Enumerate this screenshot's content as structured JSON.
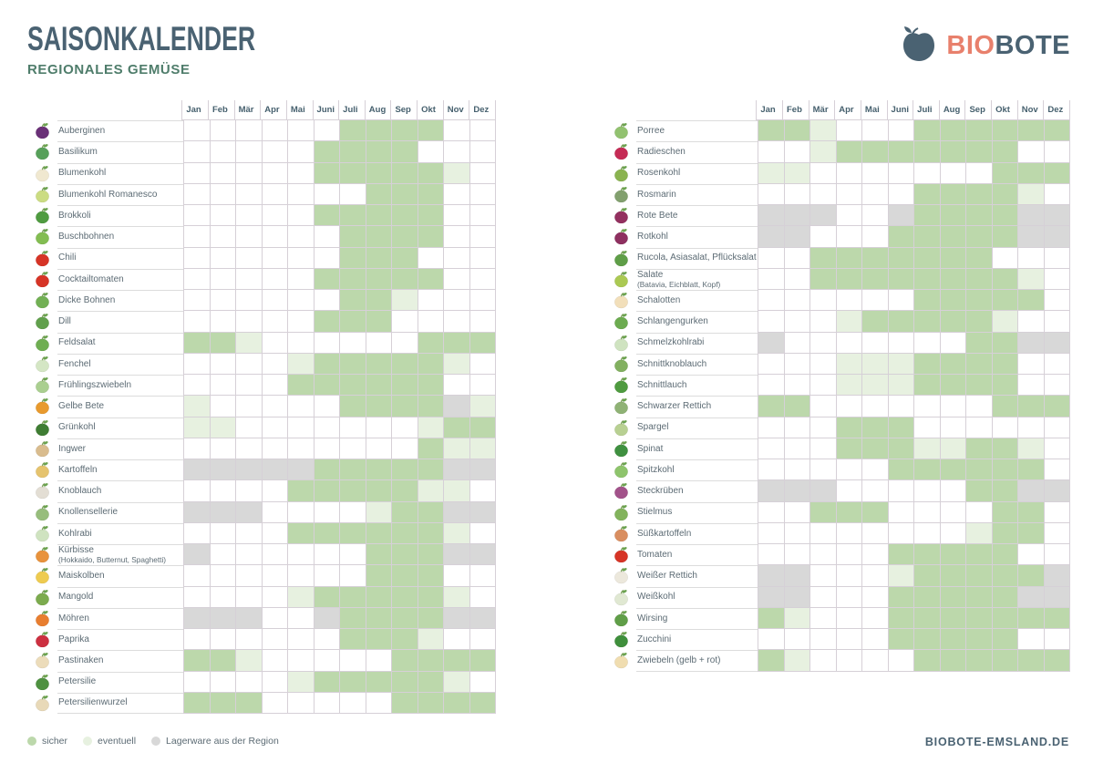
{
  "header": {
    "title": "SAISONKALENDER",
    "subtitle": "REGIONALES GEMÜSE"
  },
  "logo": {
    "bio": "BIO",
    "bote": "BOTE",
    "apple_color": "#4a6272",
    "bio_color": "#e8806c"
  },
  "footer": {
    "url": "BIOBOTE-EMSLAND.DE"
  },
  "chart_data": {
    "type": "heatmap",
    "title": "Saisonkalender – Regionales Gemüse",
    "months": [
      "Jan",
      "Feb",
      "Mär",
      "Apr",
      "Mai",
      "Juni",
      "Juli",
      "Aug",
      "Sep",
      "Okt",
      "Nov",
      "Dez"
    ],
    "cell_states": {
      "G": "sicher",
      "L": "eventuell",
      "S": "Lagerware aus der Region",
      ".": "nicht verfügbar"
    },
    "colors": {
      "sicher": "#bcd8ab",
      "eventuell": "#e7f1e0",
      "lagerware": "#d8d8d8",
      "grid_line": "#d6d0d7"
    },
    "legend": [
      {
        "label": "sicher",
        "code": "G"
      },
      {
        "label": "eventuell",
        "code": "L"
      },
      {
        "label": "Lagerware aus der Region",
        "code": "S"
      }
    ],
    "tables": [
      {
        "name": "left",
        "rows": [
          {
            "label": "Auberginen",
            "icon": "auberginen-icon",
            "icon_color": "#6a3077",
            "cells": "......GGGG.."
          },
          {
            "label": "Basilikum",
            "icon": "basilikum-icon",
            "icon_color": "#57a05a",
            "cells": ".....GGGG..."
          },
          {
            "label": "Blumenkohl",
            "icon": "blumenkohl-icon",
            "icon_color": "#f0e8d0",
            "cells": ".....GGGGGL."
          },
          {
            "label": "Blumenkohl Romanesco",
            "icon": "blumenkohl-romanesco-icon",
            "icon_color": "#cbdc82",
            "cells": ".......GGG.."
          },
          {
            "label": "Brokkoli",
            "icon": "brokkoli-icon",
            "icon_color": "#4f9b40",
            "cells": ".....GGGGG.."
          },
          {
            "label": "Buschbohnen",
            "icon": "buschbohnen-icon",
            "icon_color": "#83bd52",
            "cells": "......GGGG.."
          },
          {
            "label": "Chili",
            "icon": "chili-icon",
            "icon_color": "#d63426",
            "cells": "......GGG..."
          },
          {
            "label": "Cocktailtomaten",
            "icon": "cocktailtomaten-icon",
            "icon_color": "#d63426",
            "cells": ".....GGGGG.."
          },
          {
            "label": "Dicke Bohnen",
            "icon": "dicke-bohnen-icon",
            "icon_color": "#72b054",
            "cells": "......GGL..."
          },
          {
            "label": "Dill",
            "icon": "dill-icon",
            "icon_color": "#61a04c",
            "cells": ".....GGG...."
          },
          {
            "label": "Feldsalat",
            "icon": "feldsalat-icon",
            "icon_color": "#6fae52",
            "cells": "GGL......GGG"
          },
          {
            "label": "Fenchel",
            "icon": "fenchel-icon",
            "icon_color": "#d4e6c4",
            "cells": "....LGGGGGL."
          },
          {
            "label": "Frühlingszwiebeln",
            "icon": "fruehlingszwiebeln-icon",
            "icon_color": "#aacf90",
            "cells": "....GGGGGG.."
          },
          {
            "label": "Gelbe Bete",
            "icon": "gelbe-bete-icon",
            "icon_color": "#e89a2e",
            "cells": "L.....GGGGSL"
          },
          {
            "label": "Grünkohl",
            "icon": "gruenkohl-icon",
            "icon_color": "#3f7d33",
            "cells": "LL.......LGG"
          },
          {
            "label": "Ingwer",
            "icon": "ingwer-icon",
            "icon_color": "#d9bc8e",
            "cells": ".........GLL"
          },
          {
            "label": "Kartoffeln",
            "icon": "kartoffeln-icon",
            "icon_color": "#e5c36e",
            "cells": "SSSSSGGGGGSS"
          },
          {
            "label": "Knoblauch",
            "icon": "knoblauch-icon",
            "icon_color": "#e3ded4",
            "cells": "....GGGGGLL."
          },
          {
            "label": "Knollensellerie",
            "icon": "knollensellerie-icon",
            "icon_color": "#97bd7c",
            "cells": "SSS....LGGSS"
          },
          {
            "label": "Kohlrabi",
            "icon": "kohlrabi-icon",
            "icon_color": "#cfe3c0",
            "cells": "....GGGGGGL."
          },
          {
            "label": "Kürbisse",
            "sublabel": "(Hokkaido, Butternut, Spaghetti)",
            "icon": "kuerbisse-icon",
            "icon_color": "#e8923c",
            "cells": "S......GGGSS"
          },
          {
            "label": "Maiskolben",
            "icon": "maiskolben-icon",
            "icon_color": "#eecb50",
            "cells": ".......GGG.."
          },
          {
            "label": "Mangold",
            "icon": "mangold-icon",
            "icon_color": "#7cab4e",
            "cells": "....LGGGGGL."
          },
          {
            "label": "Möhren",
            "icon": "moehren-icon",
            "icon_color": "#e87e30",
            "cells": "SSS..SGGGGSS"
          },
          {
            "label": "Paprika",
            "icon": "paprika-icon",
            "icon_color": "#cc3040",
            "cells": "......GGGL.."
          },
          {
            "label": "Pastinaken",
            "icon": "pastinaken-icon",
            "icon_color": "#ecdcba",
            "cells": "GGL.....GGGG"
          },
          {
            "label": "Petersilie",
            "icon": "petersilie-icon",
            "icon_color": "#4e9140",
            "cells": "....LGGGGGL."
          },
          {
            "label": "Petersilienwurzel",
            "icon": "petersilienwurzel-icon",
            "icon_color": "#e8d9b8",
            "cells": "GGG.....GGGG"
          }
        ]
      },
      {
        "name": "right",
        "rows": [
          {
            "label": "Porree",
            "icon": "porree-icon",
            "icon_color": "#92c270",
            "cells": "GGL...GGGGGG"
          },
          {
            "label": "Radieschen",
            "icon": "radieschen-icon",
            "icon_color": "#c52b55",
            "cells": "..LGGGGGGG.."
          },
          {
            "label": "Rosenkohl",
            "icon": "rosenkohl-icon",
            "icon_color": "#8ab350",
            "cells": "LL.......GGG"
          },
          {
            "label": "Rosmarin",
            "icon": "rosmarin-icon",
            "icon_color": "#82a06e",
            "cells": "......GGGGL."
          },
          {
            "label": "Rote Bete",
            "icon": "rote-bete-icon",
            "icon_color": "#93305f",
            "cells": "SSS..SGGGGSS"
          },
          {
            "label": "Rotkohl",
            "icon": "rotkohl-icon",
            "icon_color": "#8e3060",
            "cells": "SS...GGGGGSS"
          },
          {
            "label": "Rucola, Asiasalat, Pflücksalat",
            "icon": "rucola-icon",
            "icon_color": "#5f9e48",
            "cells": "..GGGGGGG..."
          },
          {
            "label": "Salate",
            "sublabel": "(Batavia, Eichblatt, Kopf)",
            "icon": "salate-icon",
            "icon_color": "#abc953",
            "cells": "..GGGGGGGGL."
          },
          {
            "label": "Schalotten",
            "icon": "schalotten-icon",
            "icon_color": "#f2dfba",
            "cells": "......GGGGG."
          },
          {
            "label": "Schlangengurken",
            "icon": "schlangengurken-icon",
            "icon_color": "#6cab50",
            "cells": "...LGGGGGL.."
          },
          {
            "label": "Schmelzkohlrabi",
            "icon": "schmelzkohlrabi-icon",
            "icon_color": "#cfe3c0",
            "cells": "S.......GGSS"
          },
          {
            "label": "Schnittknoblauch",
            "icon": "schnittknoblauch-icon",
            "icon_color": "#82b060",
            "cells": "...LLLGGGG.."
          },
          {
            "label": "Schnittlauch",
            "icon": "schnittlauch-icon",
            "icon_color": "#4f9b40",
            "cells": "...LLLGGGG.."
          },
          {
            "label": "Schwarzer Rettich",
            "icon": "schwarzer-rettich-icon",
            "icon_color": "#8fb275",
            "cells": "GG.......GGG"
          },
          {
            "label": "Spargel",
            "icon": "spargel-icon",
            "icon_color": "#b8d092",
            "cells": "...GGG......"
          },
          {
            "label": "Spinat",
            "icon": "spinat-icon",
            "icon_color": "#3f9040",
            "cells": "...GGGLLGGL."
          },
          {
            "label": "Spitzkohl",
            "icon": "spitzkohl-icon",
            "icon_color": "#8ec46c",
            "cells": ".....GGGGGG."
          },
          {
            "label": "Steckrüben",
            "icon": "steckrueben-icon",
            "icon_color": "#a2528a",
            "cells": "SSS.....GGSS"
          },
          {
            "label": "Stielmus",
            "icon": "stielmus-icon",
            "icon_color": "#82b35c",
            "cells": "..GGG....GG."
          },
          {
            "label": "Süßkartoffeln",
            "icon": "suesskartoffeln-icon",
            "icon_color": "#d98e60",
            "cells": "........LGG."
          },
          {
            "label": "Tomaten",
            "icon": "tomaten-icon",
            "icon_color": "#d63426",
            "cells": ".....GGGGG.."
          },
          {
            "label": "Weißer Rettich",
            "icon": "weisser-rettich-icon",
            "icon_color": "#ece8dc",
            "cells": "SS...LGGGGGS"
          },
          {
            "label": "Weißkohl",
            "icon": "weisskohl-icon",
            "icon_color": "#e0e8d2",
            "cells": "SS...GGGGGSS"
          },
          {
            "label": "Wirsing",
            "icon": "wirsing-icon",
            "icon_color": "#609e48",
            "cells": "GL...GGGGGGG"
          },
          {
            "label": "Zucchini",
            "icon": "zucchini-icon",
            "icon_color": "#3f8f3c",
            "cells": ".....GGGGG.."
          },
          {
            "label": "Zwiebeln (gelb + rot)",
            "icon": "zwiebeln-icon",
            "icon_color": "#f0ddb0",
            "cells": "GL....GGGGGG"
          }
        ]
      }
    ]
  }
}
